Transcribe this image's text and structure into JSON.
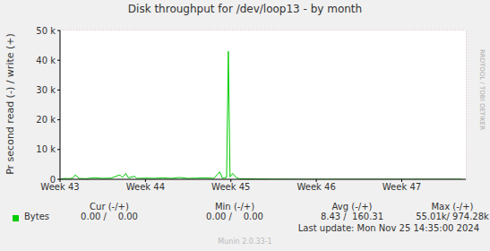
{
  "chart_data": {
    "type": "line",
    "title": "Disk throughput for /dev/loop13 - by month",
    "y_label": "Pr second read (-) / write (+)",
    "x": [
      43.0,
      43.05,
      43.1,
      43.15,
      43.18,
      43.22,
      43.3,
      43.4,
      43.5,
      43.6,
      43.7,
      43.73,
      43.77,
      43.8,
      43.87,
      43.9,
      44.0,
      44.1,
      44.2,
      44.3,
      44.4,
      44.5,
      44.6,
      44.7,
      44.8,
      44.87,
      44.9,
      44.95,
      44.97,
      44.99,
      45.02,
      45.06,
      45.1,
      45.3,
      45.5,
      45.8,
      46.0,
      46.5,
      47.0,
      47.5,
      47.7
    ],
    "series": [
      {
        "name": "Bytes",
        "color": "#00cc00",
        "values": [
          0,
          300,
          200,
          400,
          1500,
          300,
          200,
          500,
          300,
          400,
          1500,
          600,
          2000,
          500,
          1000,
          300,
          400,
          300,
          500,
          300,
          600,
          300,
          400,
          500,
          300,
          2500,
          400,
          600,
          43000,
          800,
          2000,
          600,
          200,
          100,
          50,
          0,
          0,
          0,
          0,
          0,
          0
        ]
      }
    ],
    "xlim": [
      43,
      47.75
    ],
    "xticks": [
      {
        "value": 43,
        "label": "Week 43"
      },
      {
        "value": 44,
        "label": "Week 44"
      },
      {
        "value": 45,
        "label": "Week 45"
      },
      {
        "value": 46,
        "label": "Week 46"
      },
      {
        "value": 47,
        "label": "Week 47"
      }
    ],
    "ylim": [
      0,
      50000
    ],
    "yticks": [
      0,
      {
        "value": 10000,
        "label": "10 k"
      },
      {
        "value": 20000,
        "label": "20 k"
      },
      {
        "value": 30000,
        "label": "30 k"
      },
      {
        "value": 40000,
        "label": "40 k"
      },
      {
        "value": 50000,
        "label": "50 k"
      }
    ],
    "grid": true,
    "legend_table": {
      "headers": [
        "Cur (-/+)",
        "Min (-/+)",
        "Avg (-/+)",
        "Max (-/+)"
      ],
      "rows": [
        {
          "name": "Bytes",
          "cells": [
            "0.00 /    0.00",
            "0.00 /    0.00",
            "8.43 /  160.31",
            "55.01k/ 974.28k"
          ]
        }
      ]
    },
    "last_update": "Last update: Mon Nov 25 14:35:00 2024",
    "credit": "Munin 2.0.33-1",
    "watermark": "RRDTOOL / TOBI OETIKER"
  }
}
